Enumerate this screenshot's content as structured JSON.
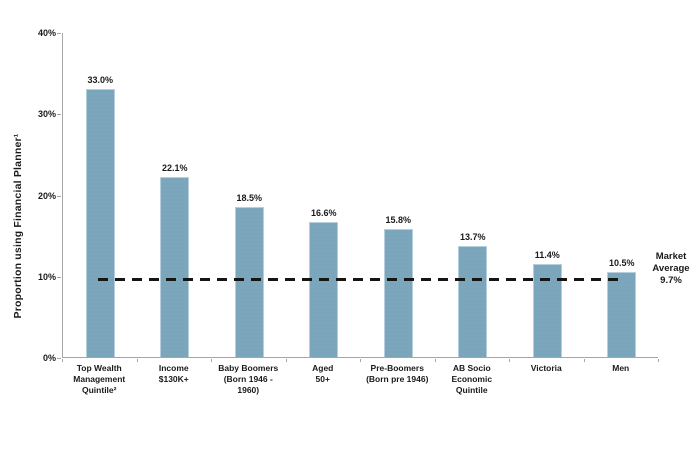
{
  "chart_data": {
    "type": "bar",
    "title": "",
    "xlabel": "",
    "ylabel": "Proportion using Financial Planner¹",
    "ylim": [
      0,
      40
    ],
    "yticks": [
      0,
      10,
      20,
      30,
      40
    ],
    "ytick_labels": [
      "0%",
      "10%",
      "20%",
      "30%",
      "40%"
    ],
    "grid": false,
    "legend": "none",
    "categories": [
      "Top Wealth Management Quintile²",
      "Income $130K+",
      "Baby Boomers (Born 1946 - 1960)",
      "Aged 50+",
      "Pre-Boomers (Born pre 1946)",
      "AB Socio Economic Quintile",
      "Victoria",
      "Men"
    ],
    "category_display": [
      "Top Wealth\nManagement\nQuintile²",
      "Income\n$130K+",
      "Baby Boomers\n(Born 1946 -\n1960)",
      "Aged\n50+",
      "Pre-Boomers\n(Born pre 1946)",
      "AB Socio\nEconomic\nQuintile",
      "Victoria",
      "Men"
    ],
    "values": [
      33.0,
      22.1,
      18.5,
      16.6,
      15.8,
      13.7,
      11.4,
      10.5
    ],
    "value_labels": [
      "33.0%",
      "22.1%",
      "18.5%",
      "16.6%",
      "15.8%",
      "13.7%",
      "11.4%",
      "10.5%"
    ],
    "reference_line": {
      "value": 9.7,
      "style": "dashed",
      "label": "Market\nAverage\n9.7%"
    },
    "colors": {
      "bar_fill": "#7ca6bc",
      "bar_border": "#b5cfdc",
      "axis": "#a6a6a6",
      "reference_line": "#141414",
      "text": "#1a1a1a",
      "background": "#ffffff"
    }
  }
}
